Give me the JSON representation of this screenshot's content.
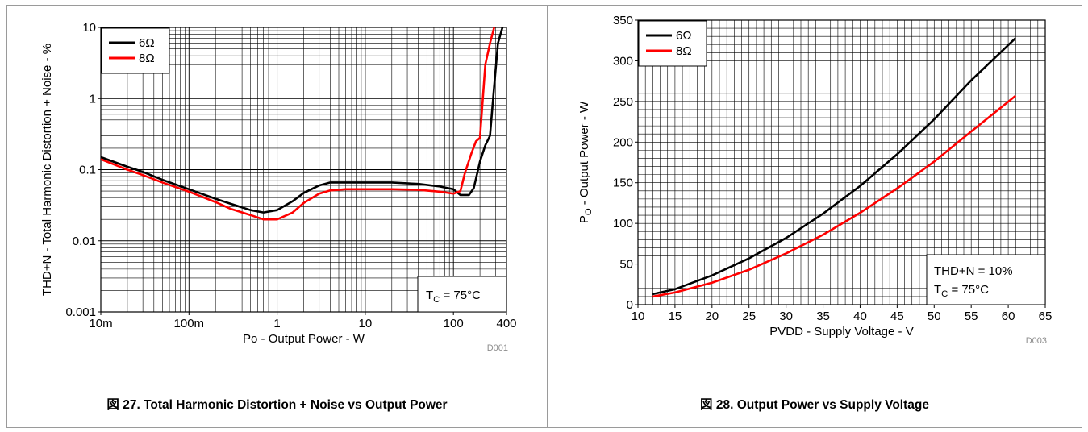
{
  "chart_data": [
    {
      "type": "line",
      "caption_prefix": "図",
      "caption": "27. Total Harmonic Distortion + Noise vs Output Power",
      "xlabel": "Po - Output Power - W",
      "ylabel": "THD+N - Total Harmonic Distortion + Noise - %",
      "xscale": "log",
      "yscale": "log",
      "xlim": [
        0.01,
        400
      ],
      "ylim": [
        0.001,
        10
      ],
      "xticks": [
        0.01,
        0.1,
        1,
        10,
        100,
        400
      ],
      "xtick_labels": [
        "10m",
        "100m",
        "1",
        "10",
        "100",
        "400"
      ],
      "yticks": [
        0.001,
        0.01,
        0.1,
        1,
        10
      ],
      "ytick_labels": [
        "0.001",
        "0.01",
        "0.1",
        "1",
        "10"
      ],
      "grid": true,
      "legend_position": "top-left",
      "annotation": {
        "prefix": "T",
        "sub": "C",
        "suffix": " = 75°C",
        "position": "bottom-right"
      },
      "figure_id": "D001",
      "series": [
        {
          "name": "6Ω",
          "color": "#000000",
          "x": [
            0.01,
            0.02,
            0.03,
            0.05,
            0.1,
            0.2,
            0.3,
            0.5,
            0.7,
            1.0,
            1.5,
            2.0,
            3.0,
            4.0,
            6.0,
            10,
            20,
            40,
            70,
            100,
            120,
            150,
            170,
            200,
            230,
            260,
            290,
            320,
            360
          ],
          "y": [
            0.15,
            0.11,
            0.093,
            0.072,
            0.053,
            0.039,
            0.033,
            0.027,
            0.025,
            0.027,
            0.036,
            0.047,
            0.06,
            0.066,
            0.066,
            0.066,
            0.066,
            0.063,
            0.058,
            0.053,
            0.044,
            0.044,
            0.055,
            0.13,
            0.22,
            0.3,
            1.5,
            6,
            10
          ]
        },
        {
          "name": "8Ω",
          "color": "#ff0000",
          "x": [
            0.01,
            0.02,
            0.03,
            0.05,
            0.1,
            0.2,
            0.3,
            0.5,
            0.7,
            1.0,
            1.5,
            2.0,
            3.0,
            4.0,
            6.0,
            10,
            20,
            40,
            70,
            100,
            120,
            135,
            160,
            180,
            200,
            230,
            260,
            290
          ],
          "y": [
            0.14,
            0.1,
            0.084,
            0.066,
            0.049,
            0.035,
            0.028,
            0.023,
            0.02,
            0.02,
            0.025,
            0.034,
            0.046,
            0.051,
            0.053,
            0.053,
            0.053,
            0.052,
            0.049,
            0.046,
            0.05,
            0.09,
            0.17,
            0.25,
            0.28,
            3,
            6,
            10
          ]
        }
      ]
    },
    {
      "type": "line",
      "caption_prefix": "図",
      "caption": "28. Output Power vs Supply Voltage",
      "xlabel": "PVDD - Supply Voltage - V",
      "ylabel": {
        "prefix": "P",
        "sub": "O",
        "suffix": " - Output Power - W"
      },
      "xlim": [
        10,
        65
      ],
      "ylim": [
        0,
        350
      ],
      "xticks": [
        10,
        15,
        20,
        25,
        30,
        35,
        40,
        45,
        50,
        55,
        60,
        65
      ],
      "xtick_labels": [
        "10",
        "15",
        "20",
        "25",
        "30",
        "35",
        "40",
        "45",
        "50",
        "55",
        "60",
        "65"
      ],
      "yticks": [
        0,
        50,
        100,
        150,
        200,
        250,
        300,
        350
      ],
      "ytick_labels": [
        "0",
        "50",
        "100",
        "150",
        "200",
        "250",
        "300",
        "350"
      ],
      "grid": true,
      "legend_position": "top-left",
      "annotation": {
        "line1": "THD+N = 10%",
        "prefix": "T",
        "sub": "C",
        "suffix": " = 75°C",
        "position": "bottom-right"
      },
      "figure_id": "D003",
      "series": [
        {
          "name": "6Ω",
          "color": "#000000",
          "x": [
            12,
            15,
            20,
            25,
            30,
            35,
            40,
            45,
            50,
            55,
            61
          ],
          "y": [
            13,
            19,
            36,
            57,
            82,
            112,
            146,
            185,
            228,
            276,
            328
          ]
        },
        {
          "name": "8Ω",
          "color": "#ff0000",
          "x": [
            12,
            15,
            20,
            25,
            30,
            35,
            40,
            45,
            50,
            55,
            61
          ],
          "y": [
            10,
            15,
            27,
            43,
            63,
            86,
            113,
            143,
            176,
            213,
            257
          ]
        }
      ]
    }
  ]
}
